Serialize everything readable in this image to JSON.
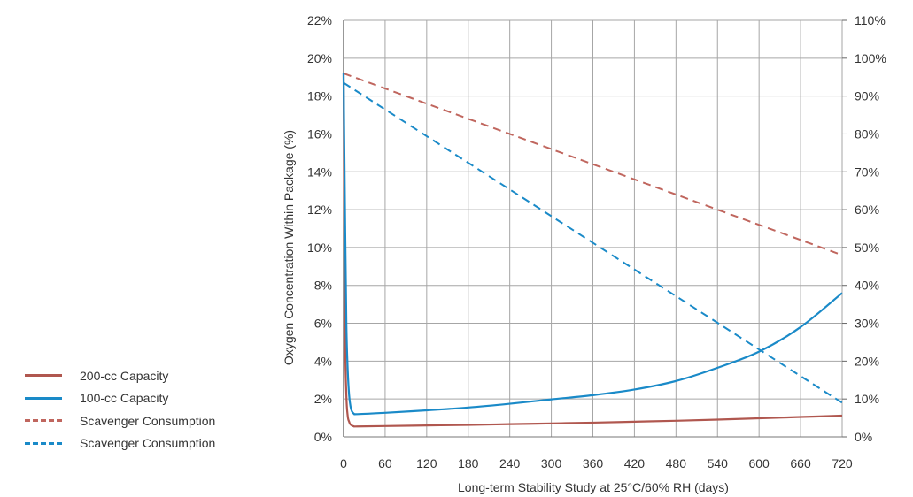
{
  "chart_data": {
    "type": "line",
    "xlabel": "Long-term Stability Study at 25°C/60% RH (days)",
    "ylabel": "Oxygen Concentration Within Package (%)",
    "x_ticks": [
      "0",
      "60",
      "120",
      "180",
      "240",
      "300",
      "360",
      "420",
      "480",
      "540",
      "600",
      "660",
      "720"
    ],
    "y_left_ticks": [
      "0%",
      "2%",
      "4%",
      "6%",
      "8%",
      "10%",
      "12%",
      "14%",
      "16%",
      "18%",
      "20%",
      "22%"
    ],
    "y_right_ticks": [
      "0%",
      "10%",
      "20%",
      "30%",
      "40%",
      "50%",
      "60%",
      "70%",
      "80%",
      "90%",
      "100%",
      "110%"
    ],
    "xlim": [
      0,
      720
    ],
    "ylim_left": [
      0,
      22
    ],
    "ylim_right": [
      0,
      110
    ],
    "grid": true,
    "legend_position": "left",
    "series": [
      {
        "name": "200-cc Capacity",
        "axis": "left",
        "style": "solid",
        "color": "#b0574f",
        "x": [
          0,
          2,
          4,
          6,
          8,
          10,
          15,
          20,
          60,
          120,
          180,
          240,
          300,
          360,
          420,
          480,
          540,
          600,
          660,
          720
        ],
        "y": [
          19.2,
          6.0,
          2.2,
          1.1,
          0.8,
          0.65,
          0.55,
          0.55,
          0.57,
          0.6,
          0.63,
          0.67,
          0.71,
          0.75,
          0.8,
          0.85,
          0.91,
          0.98,
          1.05,
          1.12
        ]
      },
      {
        "name": "100-cc Capacity",
        "axis": "left",
        "style": "solid",
        "color": "#1a8ac8",
        "x": [
          0,
          2,
          4,
          6,
          8,
          10,
          12,
          15,
          20,
          60,
          120,
          180,
          240,
          300,
          360,
          420,
          480,
          540,
          600,
          660,
          720
        ],
        "y": [
          19.2,
          12.0,
          6.0,
          3.5,
          2.2,
          1.6,
          1.35,
          1.22,
          1.2,
          1.27,
          1.4,
          1.55,
          1.75,
          1.98,
          2.2,
          2.5,
          2.95,
          3.65,
          4.5,
          5.8,
          7.6
        ]
      },
      {
        "name": "Scavenger Consumption",
        "axis": "right",
        "style": "dashed",
        "color": "#c0665e",
        "x": [
          0,
          720
        ],
        "y": [
          96,
          48
        ]
      },
      {
        "name": "Scavenger Consumption",
        "axis": "right",
        "style": "dashed",
        "color": "#1a8ac8",
        "x": [
          0,
          720
        ],
        "y": [
          93.5,
          9
        ]
      }
    ]
  }
}
